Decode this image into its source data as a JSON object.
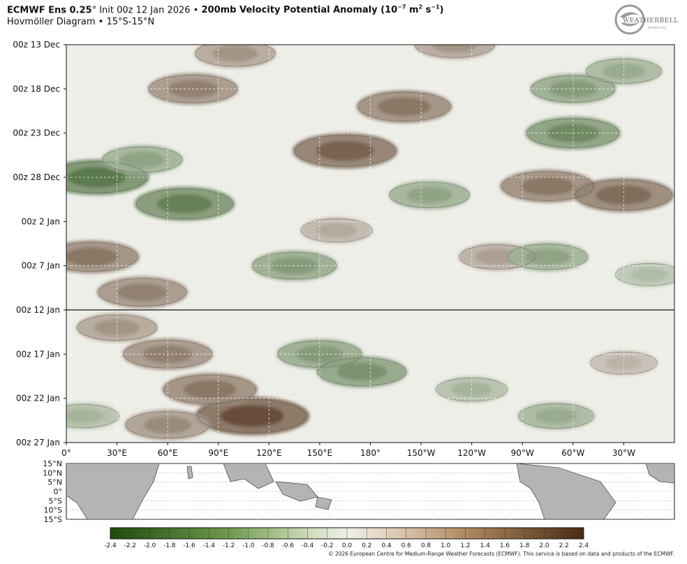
{
  "header": {
    "model_bold": "ECMWF Ens 0.25",
    "model_deg": "°",
    "init": " Init 00z 12 Jan 2026 • ",
    "field_bold": "200mb Velocity Potential Anomaly (10",
    "field_exp1": "−7",
    "field_mid": " m",
    "field_exp2": "2",
    "field_mid2": " s",
    "field_exp3": "−1",
    "field_end": ")",
    "subtitle": "Hovmöller Diagram • 15°S-15°N"
  },
  "logo": {
    "text": "WEATHERBELL",
    "sub": "Analytics LLC"
  },
  "chart_data": {
    "type": "heatmap",
    "x_axis_tick_labels": [
      "0°",
      "30°E",
      "60°E",
      "90°E",
      "120°E",
      "150°E",
      "180°",
      "150°W",
      "120°W",
      "90°W",
      "60°W",
      "30°W"
    ],
    "x_axis_longitudes": [
      0,
      30,
      60,
      90,
      120,
      150,
      180,
      210,
      240,
      270,
      300,
      330
    ],
    "xlim": [
      0,
      360
    ],
    "y_axis_tick_labels": [
      "00z 13 Dec",
      "00z 18 Dec",
      "00z 23 Dec",
      "00z 28 Dec",
      "00z 2 Jan",
      "00z 7 Jan",
      "00z 12 Jan",
      "00z 17 Jan",
      "00z 22 Jan",
      "00z 27 Jan"
    ],
    "y_axis_dates": [
      "2025-12-13",
      "2025-12-18",
      "2025-12-23",
      "2025-12-28",
      "2026-01-02",
      "2026-01-07",
      "2026-01-12",
      "2026-01-17",
      "2026-01-22",
      "2026-01-27"
    ],
    "ylim": [
      "2025-12-13",
      "2026-01-27"
    ],
    "init_line_date": "2026-01-12",
    "grid": true,
    "colorbar": {
      "ticks": [
        "-2.4",
        "-2.2",
        "-2.0",
        "-1.8",
        "-1.6",
        "-1.4",
        "-1.2",
        "-1.0",
        "-0.8",
        "-0.6",
        "-0.4",
        "-0.2",
        "0.0",
        "0.2",
        "0.4",
        "0.6",
        "0.8",
        "1.0",
        "1.2",
        "1.4",
        "1.6",
        "1.8",
        "2.0",
        "2.2",
        "2.4"
      ],
      "range": [
        -2.4,
        2.4
      ],
      "negative_color": "#1f4a0e",
      "neutral_color": "#eeeee8",
      "positive_color": "#4a2a12"
    },
    "anomalies": [
      {
        "lon": 18,
        "date": "2025-12-28",
        "value": -1.4
      },
      {
        "lon": 70,
        "date": "2025-12-31",
        "value": -1.3
      },
      {
        "lon": 45,
        "date": "2025-12-26",
        "value": -0.9
      },
      {
        "lon": 100,
        "date": "2025-12-14",
        "value": 0.9
      },
      {
        "lon": 75,
        "date": "2025-12-18",
        "value": 1.1
      },
      {
        "lon": 165,
        "date": "2025-12-25",
        "value": 1.4
      },
      {
        "lon": 200,
        "date": "2025-12-20",
        "value": 1.2
      },
      {
        "lon": 230,
        "date": "2025-12-13",
        "value": 0.9
      },
      {
        "lon": 300,
        "date": "2025-12-18",
        "value": -1.0
      },
      {
        "lon": 330,
        "date": "2025-12-16",
        "value": -0.8
      },
      {
        "lon": 285,
        "date": "2025-12-29",
        "value": 1.2
      },
      {
        "lon": 330,
        "date": "2025-12-30",
        "value": 1.3
      },
      {
        "lon": 300,
        "date": "2025-12-23",
        "value": -1.2
      },
      {
        "lon": 215,
        "date": "2025-12-30",
        "value": -0.9
      },
      {
        "lon": 15,
        "date": "2026-01-06",
        "value": 1.2
      },
      {
        "lon": 45,
        "date": "2026-01-10",
        "value": 1.1
      },
      {
        "lon": 135,
        "date": "2026-01-07",
        "value": -1.0
      },
      {
        "lon": 160,
        "date": "2026-01-03",
        "value": 0.7
      },
      {
        "lon": 255,
        "date": "2026-01-06",
        "value": 0.8
      },
      {
        "lon": 285,
        "date": "2026-01-06",
        "value": -0.9
      },
      {
        "lon": 345,
        "date": "2026-01-08",
        "value": -0.6
      },
      {
        "lon": 60,
        "date": "2026-01-17",
        "value": 1.1
      },
      {
        "lon": 30,
        "date": "2026-01-14",
        "value": 0.9
      },
      {
        "lon": 150,
        "date": "2026-01-17",
        "value": -1.0
      },
      {
        "lon": 175,
        "date": "2026-01-19",
        "value": -1.1
      },
      {
        "lon": 110,
        "date": "2026-01-24",
        "value": 1.6
      },
      {
        "lon": 85,
        "date": "2026-01-21",
        "value": 1.2
      },
      {
        "lon": 60,
        "date": "2026-01-25",
        "value": 1.0
      },
      {
        "lon": 240,
        "date": "2026-01-21",
        "value": -0.7
      },
      {
        "lon": 290,
        "date": "2026-01-24",
        "value": -0.8
      },
      {
        "lon": 10,
        "date": "2026-01-24",
        "value": -0.7
      },
      {
        "lon": 330,
        "date": "2026-01-18",
        "value": 0.6
      }
    ]
  },
  "map": {
    "lat_labels": [
      "15°N",
      "10°N",
      "5°N",
      "0°",
      "5°S",
      "10°S",
      "15°S"
    ],
    "land_color": "#b4b4b4"
  },
  "copyright": "© 2026 European Centre for Medium-Range Weather Forecasts (ECMWF). This service is based on data and products of the ECMWF."
}
